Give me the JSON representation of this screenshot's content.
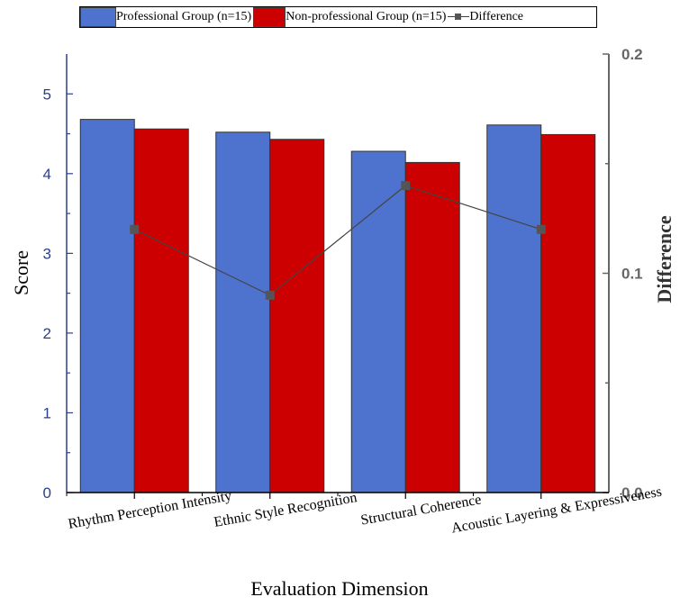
{
  "chart_data": {
    "type": "bar",
    "categories": [
      "Rhythm Perception Intensity",
      "Ethnic Style Recognition",
      "Structural Coherence",
      "Acoustic Layering & Expressiveness"
    ],
    "series": [
      {
        "name": "Professional Group (n=15)",
        "type": "bar",
        "axis": "left",
        "color": "#4e73cf",
        "values": [
          4.68,
          4.52,
          4.28,
          4.61
        ]
      },
      {
        "name": "Non-professional Group (n=15)",
        "type": "bar",
        "axis": "left",
        "color": "#cc0000",
        "values": [
          4.56,
          4.43,
          4.14,
          4.49
        ]
      },
      {
        "name": "Difference",
        "type": "line",
        "axis": "right",
        "color": "#444444",
        "values": [
          0.12,
          0.09,
          0.14,
          0.12
        ]
      }
    ],
    "xlabel": "Evaluation Dimension",
    "ylabel": "Score",
    "ylabel_right": "Difference",
    "ylim": [
      0,
      5.5
    ],
    "ylim_right": [
      0,
      0.2
    ],
    "yticks": [
      "0",
      "1",
      "2",
      "3",
      "4",
      "5"
    ],
    "yticks_right": [
      "0.0",
      "0.1",
      "0.2"
    ],
    "left_axis_color": "#2b3f8f",
    "right_axis_color": "#666666",
    "legend_position": "top",
    "grid": false
  }
}
